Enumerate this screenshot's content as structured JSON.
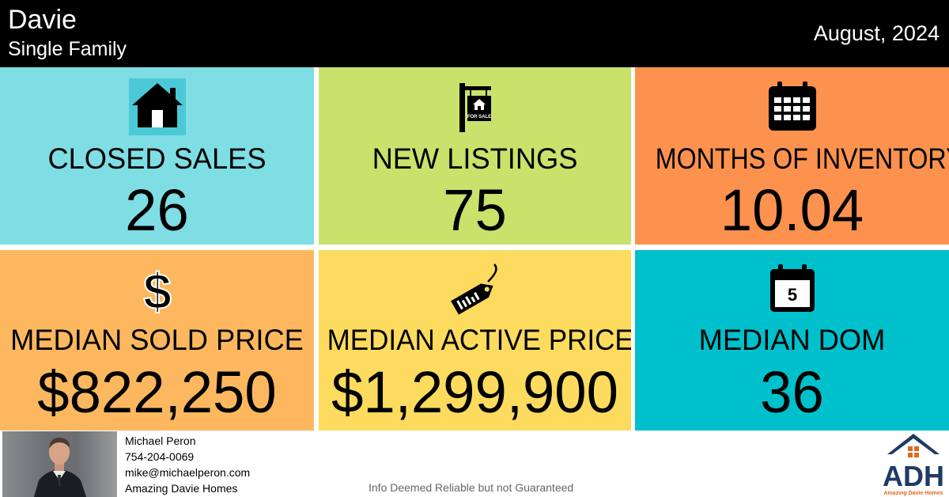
{
  "header": {
    "city": "Davie",
    "property_type": "Single Family",
    "period": "August, 2024"
  },
  "colors": {
    "closed_sales": "#7fdde4",
    "new_listings": "#c9e26b",
    "months_of_inventory": "#fd924f",
    "median_sold_price": "#fdb85f",
    "median_active_price": "#fddb5f",
    "median_dom": "#00c0cc"
  },
  "stats": {
    "closed_sales": {
      "label": "CLOSED SALES",
      "value": "26",
      "icon": "house-icon"
    },
    "new_listings": {
      "label": "NEW LISTINGS",
      "value": "75",
      "icon": "for-sale-sign-icon",
      "icon_text": "FOR SALE"
    },
    "months_of_inventory": {
      "label": "MONTHS OF INVENTORY",
      "value": "10.04",
      "icon": "calendar-icon"
    },
    "median_sold_price": {
      "label": "MEDIAN SOLD PRICE",
      "value": "$822,250",
      "icon": "dollar-sign-icon"
    },
    "median_active_price": {
      "label": "MEDIAN ACTIVE PRICE",
      "value": "$1,299,900",
      "icon": "price-tag-icon"
    },
    "median_dom": {
      "label": "MEDIAN DOM",
      "value": "36",
      "icon": "calendar-day-icon",
      "icon_text": "5"
    }
  },
  "agent": {
    "name": "Michael Peron",
    "phone": "754-204-0069",
    "email": "mike@michaelperon.com",
    "company": "Amazing Davie Homes"
  },
  "disclaimer": "Info Deemed Reliable but not Guaranteed",
  "logo": {
    "letters": "ADH",
    "tagline": "Amazing Davie Homes"
  }
}
